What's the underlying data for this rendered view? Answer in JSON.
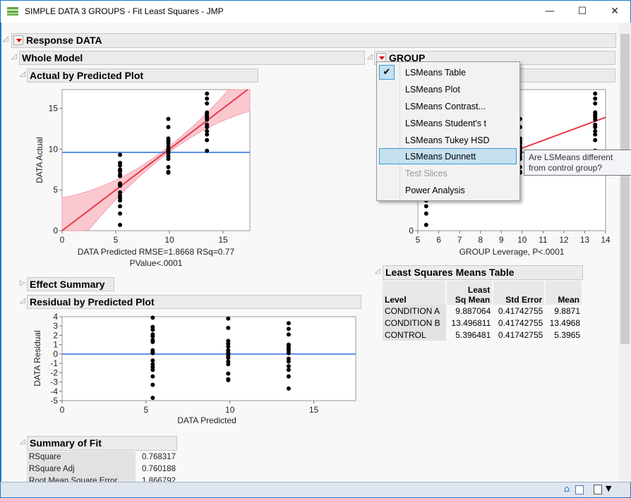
{
  "window": {
    "title": "SIMPLE DATA 3 GROUPS - Fit Least Squares - JMP",
    "minimize": "—",
    "maximize": "☐",
    "close": "✕"
  },
  "report": {
    "response_title": "Response DATA",
    "whole_model": "Whole Model",
    "actual_by_predicted": "Actual by Predicted Plot",
    "effect_summary": "Effect Summary",
    "residual_by_predicted": "Residual by Predicted Plot",
    "summary_of_fit": {
      "title": "Summary of Fit",
      "rows": [
        {
          "label": "RSquare",
          "value": "0.768317"
        },
        {
          "label": "RSquare Adj",
          "value": "0.760188"
        },
        {
          "label": "Root Mean Square Error",
          "value": "1.866792"
        }
      ]
    },
    "group_title": "GROUP",
    "lsm_table": {
      "title": "Least Squares Means Table",
      "headers": [
        "Level",
        "Least\nSq Mean",
        "Std Error",
        "Mean"
      ],
      "header_lines": {
        "lsm1": "Least",
        "lsm2": "Sq Mean"
      },
      "rows": [
        [
          "CONDITION A",
          "9.887064",
          "0.41742755",
          "9.8871"
        ],
        [
          "CONDITION B",
          "13.496811",
          "0.41742755",
          "13.4968"
        ],
        [
          "CONTROL",
          "5.396481",
          "0.41742755",
          "5.3965"
        ]
      ]
    }
  },
  "menu": {
    "items": [
      {
        "label": "LSMeans Table",
        "checked": true
      },
      {
        "label": "LSMeans Plot"
      },
      {
        "label": "LSMeans Contrast..."
      },
      {
        "label": "LSMeans Student's t"
      },
      {
        "label": "LSMeans Tukey HSD"
      },
      {
        "label": "LSMeans Dunnett",
        "highlighted": true
      },
      {
        "label": "Test Slices",
        "disabled": true
      },
      {
        "label": "Power Analysis"
      }
    ],
    "tooltip": "Are LSMeans different from control group?"
  },
  "colors": {
    "fit_line": "#e8394a",
    "confidence_band": "#f9c9cf",
    "mean_line": "#5b8ee8",
    "points": "#000000",
    "accent": "#1979ca"
  },
  "chart_data": [
    {
      "type": "scatter",
      "title": "Actual by Predicted Plot",
      "xlabel": "DATA Predicted RMSE=1.8668 RSq=0.77",
      "xlabel2": "PValue<.0001",
      "ylabel": "DATA Actual",
      "xlim": [
        0,
        17.5
      ],
      "ylim": [
        0,
        17.3
      ],
      "xticks": [
        0,
        5,
        10,
        15
      ],
      "yticks": [
        0,
        5,
        10,
        15
      ],
      "mean_line": 9.6,
      "groups": [
        {
          "x": 5.4,
          "y": [
            9.3,
            8.3,
            8.0,
            7.5,
            7.3,
            6.9,
            6.7,
            5.8,
            5.6,
            5.5,
            4.7,
            4.3,
            4.0,
            3.7,
            3.0,
            2.1,
            0.7
          ]
        },
        {
          "x": 9.9,
          "y": [
            13.7,
            12.7,
            11.3,
            11.0,
            10.7,
            10.3,
            10.0,
            9.9,
            9.7,
            9.5,
            9.1,
            8.8,
            7.8,
            7.2,
            7.1
          ]
        },
        {
          "x": 13.5,
          "y": [
            16.8,
            16.2,
            15.6,
            14.5,
            14.3,
            14.1,
            13.9,
            13.6,
            13.0,
            12.7,
            12.2,
            11.8,
            11.1,
            9.8
          ]
        }
      ]
    },
    {
      "type": "scatter",
      "title": "GROUP Leverage",
      "xlabel": "GROUP Leverage, P<.0001",
      "xlim": [
        5,
        14
      ],
      "ylim": [
        0,
        17.3
      ],
      "xticks": [
        5,
        6,
        7,
        8,
        9,
        10,
        11,
        12,
        13,
        14
      ],
      "yticks": [
        0
      ]
    },
    {
      "type": "scatter",
      "title": "Residual by Predicted Plot",
      "xlabel": "DATA Predicted",
      "ylabel": "DATA Residual",
      "xlim": [
        0,
        17.5
      ],
      "ylim": [
        -5,
        4
      ],
      "xticks": [
        0,
        5,
        10,
        15
      ],
      "yticks": [
        4,
        3,
        2,
        1,
        0,
        -1,
        -2,
        -3,
        -4,
        -5
      ],
      "zero_line": 0
    }
  ]
}
